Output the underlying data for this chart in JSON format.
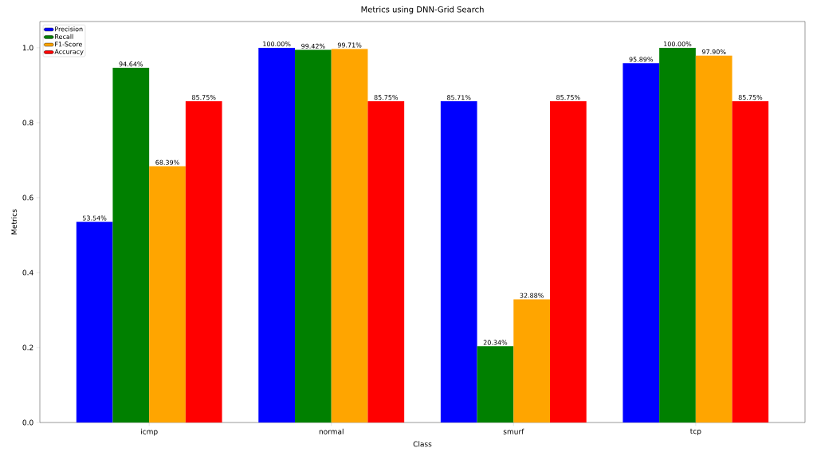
{
  "chart_data": {
    "type": "bar",
    "title": "Metrics using DNN-Grid Search",
    "xlabel": "Class",
    "ylabel": "Metrics",
    "categories": [
      "icmp",
      "normal",
      "smurf",
      "tcp"
    ],
    "series": [
      {
        "name": "Precision",
        "color": "#0000ff",
        "values": [
          0.5354,
          1.0,
          0.8571,
          0.9589
        ],
        "value_labels": [
          "53.54%",
          "100.00%",
          "85.71%",
          "95.89%"
        ]
      },
      {
        "name": "Recall",
        "color": "#008000",
        "values": [
          0.9464,
          0.9942,
          0.2034,
          1.0
        ],
        "value_labels": [
          "94.64%",
          "99.42%",
          "20.34%",
          "100.00%"
        ]
      },
      {
        "name": "F1-Score",
        "color": "#ffa500",
        "values": [
          0.6839,
          0.9971,
          0.3288,
          0.979
        ],
        "value_labels": [
          "68.39%",
          "99.71%",
          "32.88%",
          "97.90%"
        ]
      },
      {
        "name": "Accuracy",
        "color": "#ff0000",
        "values": [
          0.8575,
          0.8575,
          0.8575,
          0.8575
        ],
        "value_labels": [
          "85.75%",
          "85.75%",
          "85.75%",
          "85.75%"
        ]
      }
    ],
    "ylim": [
      0,
      1.07
    ],
    "yticks": [
      {
        "value": 0,
        "label": "0.0"
      },
      {
        "value": 0.2,
        "label": "0.2"
      },
      {
        "value": 0.4,
        "label": "0.4"
      },
      {
        "value": 0.6,
        "label": "0.6"
      },
      {
        "value": 0.8,
        "label": "0.8"
      },
      {
        "value": 1.0,
        "label": "1.0"
      }
    ],
    "legend": "top left"
  }
}
